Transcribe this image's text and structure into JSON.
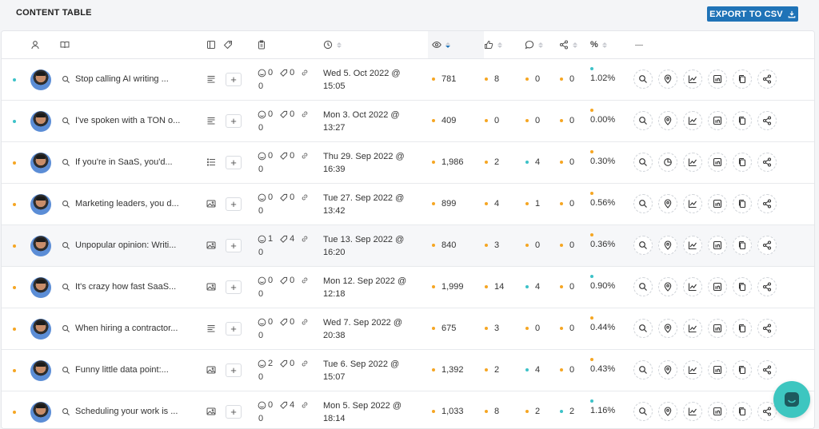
{
  "header": {
    "title": "CONTENT TABLE",
    "export_label": "EXPORT TO CSV"
  },
  "columns": {
    "percent_label": "%"
  },
  "colors": {
    "accent": "#1f73b7",
    "teal": "#3dc2c8",
    "orange": "#f5a623"
  },
  "rows": [
    {
      "status": "teal",
      "text": "Stop calling AI writing ...",
      "type_icon": "text-lines-icon",
      "reactions": "0",
      "comments": "0",
      "links": "0",
      "date_line1": "Wed 5. Oct 2022 @",
      "date_line2": "15:05",
      "views": "781",
      "views_dot": "orange",
      "likes": "8",
      "likes_dot": "orange",
      "comments_count": "0",
      "comments_dot": "orange",
      "shares": "0",
      "shares_dot": "orange",
      "pct": "1.02%",
      "pct_dot": "teal"
    },
    {
      "status": "teal",
      "text": "I've spoken with a TON o...",
      "type_icon": "text-lines-icon",
      "reactions": "0",
      "comments": "0",
      "links": "0",
      "date_line1": "Mon 3. Oct 2022 @",
      "date_line2": "13:27",
      "views": "409",
      "views_dot": "orange",
      "likes": "0",
      "likes_dot": "orange",
      "comments_count": "0",
      "comments_dot": "orange",
      "shares": "0",
      "shares_dot": "orange",
      "pct": "0.00%",
      "pct_dot": "orange"
    },
    {
      "status": "orange",
      "text": "If you're in SaaS, you'd...",
      "type_icon": "bullet-list-icon",
      "reactions": "0",
      "comments": "0",
      "links": "0",
      "date_line1": "Thu 29. Sep 2022 @",
      "date_line2": "16:39",
      "views": "1,986",
      "views_dot": "orange",
      "likes": "2",
      "likes_dot": "orange",
      "comments_count": "4",
      "comments_dot": "teal",
      "shares": "0",
      "shares_dot": "orange",
      "pct": "0.30%",
      "pct_dot": "orange"
    },
    {
      "status": "orange",
      "text": "Marketing leaders, you d...",
      "type_icon": "image-icon",
      "reactions": "0",
      "comments": "0",
      "links": "0",
      "date_line1": "Tue 27. Sep 2022 @",
      "date_line2": "13:42",
      "views": "899",
      "views_dot": "orange",
      "likes": "4",
      "likes_dot": "orange",
      "comments_count": "1",
      "comments_dot": "orange",
      "shares": "0",
      "shares_dot": "orange",
      "pct": "0.56%",
      "pct_dot": "orange"
    },
    {
      "status": "orange",
      "text": "Unpopular opinion: Writi...",
      "type_icon": "image-icon",
      "reactions": "1",
      "comments": "4",
      "links": "0",
      "date_line1": "Tue 13. Sep 2022 @",
      "date_line2": "16:20",
      "views": "840",
      "views_dot": "orange",
      "likes": "3",
      "likes_dot": "orange",
      "comments_count": "0",
      "comments_dot": "orange",
      "shares": "0",
      "shares_dot": "orange",
      "pct": "0.36%",
      "pct_dot": "orange"
    },
    {
      "status": "orange",
      "text": "It's crazy how fast SaaS...",
      "type_icon": "image-icon",
      "reactions": "0",
      "comments": "0",
      "links": "0",
      "date_line1": "Mon 12. Sep 2022 @",
      "date_line2": "12:18",
      "views": "1,999",
      "views_dot": "orange",
      "likes": "14",
      "likes_dot": "orange",
      "comments_count": "4",
      "comments_dot": "teal",
      "shares": "0",
      "shares_dot": "orange",
      "pct": "0.90%",
      "pct_dot": "teal"
    },
    {
      "status": "orange",
      "text": "When hiring a contractor...",
      "type_icon": "text-lines-icon",
      "reactions": "0",
      "comments": "0",
      "links": "0",
      "date_line1": "Wed 7. Sep 2022 @",
      "date_line2": "20:38",
      "views": "675",
      "views_dot": "orange",
      "likes": "3",
      "likes_dot": "orange",
      "comments_count": "0",
      "comments_dot": "orange",
      "shares": "0",
      "shares_dot": "orange",
      "pct": "0.44%",
      "pct_dot": "orange"
    },
    {
      "status": "orange",
      "text": "Funny little data point:...",
      "type_icon": "image-icon",
      "reactions": "2",
      "comments": "0",
      "links": "0",
      "date_line1": "Tue 6. Sep 2022 @",
      "date_line2": "15:07",
      "views": "1,392",
      "views_dot": "orange",
      "likes": "2",
      "likes_dot": "orange",
      "comments_count": "4",
      "comments_dot": "teal",
      "shares": "0",
      "shares_dot": "orange",
      "pct": "0.43%",
      "pct_dot": "orange"
    },
    {
      "status": "orange",
      "text": "Scheduling your work is ...",
      "type_icon": "image-icon",
      "reactions": "0",
      "comments": "4",
      "links": "0",
      "date_line1": "Mon 5. Sep 2022 @",
      "date_line2": "18:14",
      "views": "1,033",
      "views_dot": "orange",
      "likes": "8",
      "likes_dot": "orange",
      "comments_count": "2",
      "comments_dot": "orange",
      "shares": "2",
      "shares_dot": "teal",
      "pct": "1.16%",
      "pct_dot": "teal"
    }
  ]
}
